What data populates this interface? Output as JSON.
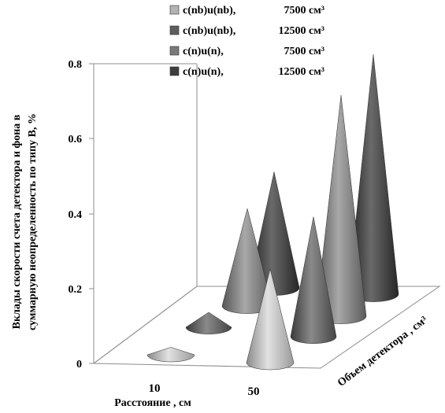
{
  "chart_data": {
    "type": "bar",
    "subtype": "3d-cone",
    "title": "",
    "ylabel": "Вклады  скорости счета  детектора и фона  в суммарную неопределенность  по типу В, %",
    "ylabel_line1": "Вклады  скорости счета  детектора и фона  в",
    "ylabel_line2": "суммарную неопределенность  по типу В, %",
    "xlabel": "Расстояние , см",
    "zlabel": "Объем детектора , см³",
    "categories": [
      "10",
      "50"
    ],
    "ylim": [
      0,
      0.8
    ],
    "yticks": [
      "0",
      "0.2",
      "0.4",
      "0.6",
      "0.8"
    ],
    "grid": false,
    "legend_position": "top",
    "series": [
      {
        "name": "c(nb)u(nb),",
        "volume": "7500 см³",
        "color": "#b3b3b3",
        "values": [
          0.02,
          0.25
        ]
      },
      {
        "name": "c(nb)u(nb),",
        "volume": "12500 см³",
        "color": "#5e5e5e",
        "values": [
          0.04,
          0.32
        ]
      },
      {
        "name": "c(n)u(n),",
        "volume": "7500 см³",
        "color": "#7a7a7a",
        "values": [
          0.26,
          0.59
        ]
      },
      {
        "name": "c(n)u(n),",
        "volume": "12500 см³",
        "color": "#3d3d3d",
        "values": [
          0.31,
          0.64
        ]
      }
    ]
  }
}
